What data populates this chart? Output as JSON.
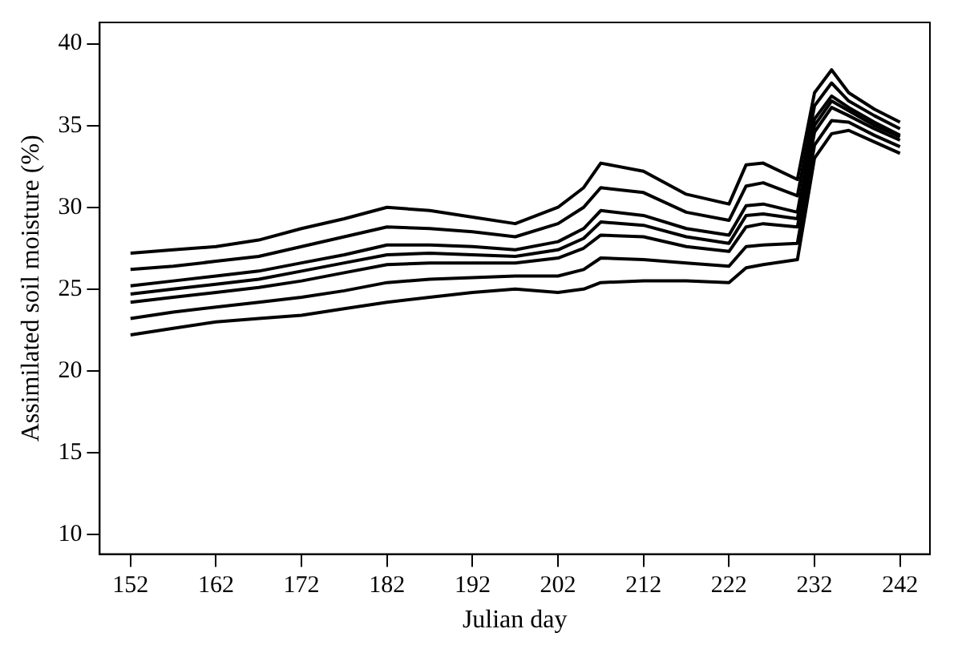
{
  "chart_data": {
    "type": "line",
    "xlabel": "Julian day",
    "ylabel": "Assimilated soil moisture (%)",
    "x": [
      152,
      157,
      162,
      167,
      172,
      177,
      182,
      187,
      192,
      197,
      202,
      205,
      207,
      212,
      217,
      222,
      224,
      226,
      230,
      232,
      234,
      236,
      239,
      242
    ],
    "series": [
      {
        "color": "#000000",
        "values": [
          22.2,
          22.6,
          23.0,
          23.2,
          23.4,
          23.8,
          24.2,
          24.5,
          24.8,
          25.0,
          24.8,
          25.0,
          25.4,
          25.5,
          25.5,
          25.4,
          26.3,
          26.5,
          26.8,
          33.0,
          34.5,
          34.7,
          34.0,
          33.3
        ]
      },
      {
        "color": "#000000",
        "values": [
          23.2,
          23.6,
          23.9,
          24.2,
          24.5,
          24.9,
          25.4,
          25.6,
          25.7,
          25.8,
          25.8,
          26.2,
          26.9,
          26.8,
          26.6,
          26.4,
          27.6,
          27.7,
          27.8,
          33.8,
          35.3,
          35.2,
          34.4,
          33.7
        ]
      },
      {
        "color": "#000000",
        "values": [
          24.2,
          24.5,
          24.8,
          25.1,
          25.5,
          26.0,
          26.5,
          26.6,
          26.6,
          26.6,
          26.9,
          27.5,
          28.3,
          28.2,
          27.6,
          27.3,
          28.8,
          29.0,
          28.8,
          34.6,
          36.1,
          35.6,
          34.8,
          34.1
        ]
      },
      {
        "color": "#000000",
        "values": [
          24.7,
          25.0,
          25.3,
          25.6,
          26.1,
          26.6,
          27.1,
          27.2,
          27.1,
          27.0,
          27.4,
          28.1,
          29.1,
          28.9,
          28.2,
          27.8,
          29.5,
          29.6,
          29.3,
          35.0,
          36.5,
          35.9,
          35.0,
          34.3
        ]
      },
      {
        "color": "#000000",
        "values": [
          25.2,
          25.5,
          25.8,
          26.1,
          26.6,
          27.1,
          27.7,
          27.7,
          27.6,
          27.4,
          27.9,
          28.7,
          29.8,
          29.5,
          28.7,
          28.3,
          30.1,
          30.2,
          29.7,
          35.4,
          36.8,
          36.1,
          35.2,
          34.4
        ]
      },
      {
        "color": "#000000",
        "values": [
          26.2,
          26.4,
          26.7,
          27.0,
          27.6,
          28.2,
          28.8,
          28.7,
          28.5,
          28.2,
          29.0,
          30.0,
          31.2,
          30.9,
          29.7,
          29.2,
          31.3,
          31.5,
          30.7,
          36.2,
          37.6,
          36.5,
          35.6,
          34.8
        ]
      },
      {
        "color": "#000000",
        "values": [
          27.2,
          27.4,
          27.6,
          28.0,
          28.7,
          29.3,
          30.0,
          29.8,
          29.4,
          29.0,
          30.0,
          31.2,
          32.7,
          32.2,
          30.8,
          30.2,
          32.6,
          32.7,
          31.7,
          37.0,
          38.4,
          37.0,
          36.0,
          35.2
        ]
      }
    ],
    "xlim": [
      148.4,
      245.5
    ],
    "xticks": [
      152,
      162,
      172,
      182,
      192,
      202,
      212,
      222,
      232,
      242
    ],
    "ylim": [
      8.8,
      41.3
    ],
    "yticks": [
      10,
      15,
      20,
      25,
      30,
      35,
      40
    ],
    "grid": false,
    "legend": false,
    "marker": "none",
    "line_style": "solid"
  }
}
